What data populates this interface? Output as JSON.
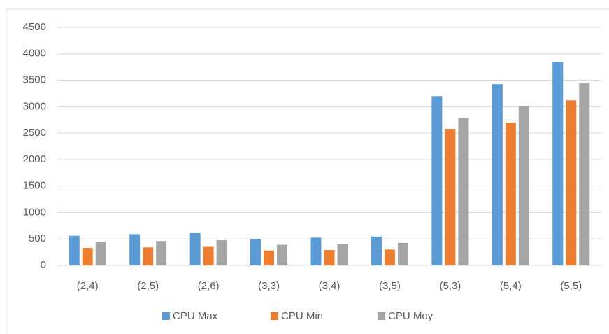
{
  "chart_data": {
    "type": "bar",
    "categories": [
      "(2,4)",
      "(2,5)",
      "(2,6)",
      "(3,3)",
      "(3,4)",
      "(3,5)",
      "(5,3)",
      "(5,4)",
      "(5,5)"
    ],
    "series": [
      {
        "name": "CPU Max",
        "color": "#5b9bd5",
        "values": [
          560,
          590,
          610,
          500,
          525,
          545,
          3200,
          3425,
          3850
        ]
      },
      {
        "name": "CPU Min",
        "color": "#ed7d31",
        "values": [
          330,
          340,
          350,
          280,
          290,
          300,
          2580,
          2700,
          3120
        ]
      },
      {
        "name": "CPU Moy",
        "color": "#a5a5a5",
        "values": [
          450,
          460,
          475,
          390,
          410,
          425,
          2790,
          3015,
          3440
        ]
      }
    ],
    "ylim": [
      0,
      4500
    ],
    "yticks": [
      0,
      500,
      1000,
      1500,
      2000,
      2500,
      3000,
      3500,
      4000,
      4500
    ],
    "grid": true,
    "legend": "bottom"
  }
}
